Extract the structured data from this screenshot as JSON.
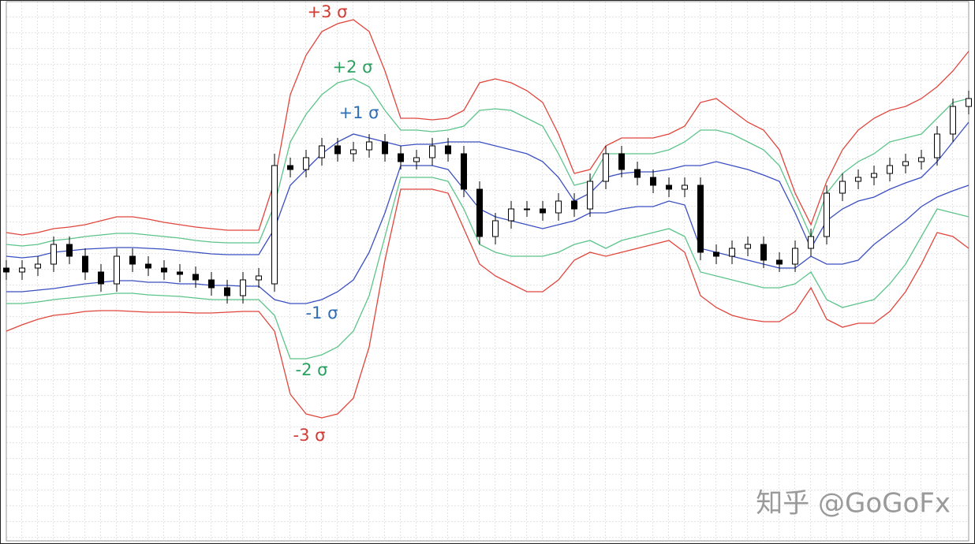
{
  "chart_data": {
    "type": "candlestick",
    "grid": true,
    "ylim": [
      0,
      690
    ],
    "up_color": "#ffffff",
    "down_color": "#000000",
    "wick_color": "#000000",
    "open": [
      350,
      345,
      350,
      355,
      380,
      365,
      345,
      330,
      365,
      355,
      350,
      345,
      342,
      335,
      325,
      315,
      335,
      330,
      480,
      475,
      490,
      505,
      495,
      500,
      510,
      495,
      485,
      490,
      505,
      495,
      450,
      390,
      410,
      425,
      425,
      420,
      435,
      425,
      460,
      495,
      475,
      465,
      455,
      450,
      455,
      370,
      365,
      375,
      380,
      360,
      355,
      375,
      390,
      445,
      460,
      465,
      470,
      480,
      485,
      490,
      520,
      555
    ],
    "high": [
      360,
      360,
      365,
      390,
      390,
      375,
      355,
      375,
      375,
      365,
      360,
      355,
      352,
      345,
      335,
      345,
      350,
      495,
      490,
      500,
      515,
      515,
      510,
      520,
      520,
      505,
      500,
      515,
      515,
      505,
      460,
      420,
      435,
      435,
      435,
      445,
      445,
      470,
      505,
      505,
      485,
      475,
      465,
      465,
      465,
      380,
      385,
      390,
      390,
      370,
      385,
      400,
      455,
      470,
      475,
      480,
      490,
      495,
      500,
      530,
      565,
      575
    ],
    "low": [
      335,
      335,
      340,
      345,
      355,
      335,
      320,
      320,
      345,
      340,
      335,
      332,
      325,
      315,
      305,
      305,
      325,
      320,
      465,
      465,
      480,
      485,
      485,
      490,
      485,
      475,
      475,
      480,
      485,
      440,
      380,
      380,
      400,
      415,
      410,
      410,
      415,
      415,
      450,
      465,
      455,
      445,
      440,
      440,
      360,
      355,
      355,
      365,
      350,
      345,
      345,
      365,
      380,
      435,
      450,
      455,
      460,
      470,
      475,
      480,
      510,
      545
    ],
    "close": [
      345,
      350,
      355,
      380,
      365,
      345,
      330,
      365,
      355,
      350,
      345,
      342,
      335,
      325,
      315,
      335,
      340,
      480,
      475,
      490,
      505,
      495,
      500,
      510,
      495,
      485,
      490,
      505,
      495,
      450,
      390,
      410,
      425,
      425,
      420,
      435,
      425,
      460,
      495,
      475,
      465,
      455,
      450,
      455,
      370,
      365,
      375,
      380,
      360,
      355,
      375,
      390,
      445,
      460,
      465,
      470,
      480,
      485,
      490,
      520,
      555,
      565
    ],
    "series": [
      {
        "name": "+3 σ",
        "color": "#e0453c",
        "values": [
          395,
          392,
          395,
          400,
          402,
          405,
          410,
          415,
          415,
          412,
          408,
          405,
          402,
          400,
          398,
          398,
          398,
          460,
          570,
          620,
          650,
          660,
          665,
          650,
          600,
          540,
          540,
          538,
          540,
          550,
          585,
          590,
          585,
          575,
          560,
          520,
          470,
          475,
          505,
          515,
          515,
          515,
          520,
          530,
          560,
          565,
          550,
          535,
          525,
          500,
          445,
          405,
          460,
          500,
          525,
          540,
          550,
          555,
          565,
          580,
          600,
          625
        ]
      },
      {
        "name": "+2 σ",
        "color": "#5cc48a",
        "values": [
          380,
          378,
          380,
          385,
          387,
          390,
          392,
          394,
          394,
          392,
          390,
          388,
          385,
          383,
          382,
          382,
          382,
          430,
          510,
          545,
          570,
          585,
          590,
          580,
          550,
          525,
          525,
          523,
          525,
          530,
          550,
          552,
          550,
          540,
          530,
          495,
          455,
          460,
          495,
          495,
          495,
          495,
          500,
          510,
          525,
          525,
          520,
          510,
          500,
          480,
          435,
          390,
          445,
          470,
          485,
          495,
          510,
          515,
          520,
          540,
          560,
          565
        ]
      },
      {
        "name": "+1 σ",
        "color": "#3a4fc0",
        "values": [
          365,
          363,
          365,
          370,
          372,
          374,
          375,
          376,
          376,
          375,
          374,
          372,
          370,
          368,
          367,
          367,
          367,
          400,
          455,
          475,
          495,
          510,
          520,
          515,
          510,
          505,
          507,
          507,
          510,
          510,
          510,
          505,
          500,
          495,
          485,
          465,
          435,
          445,
          465,
          470,
          472,
          472,
          475,
          480,
          480,
          485,
          480,
          475,
          468,
          460,
          420,
          375,
          410,
          425,
          435,
          440,
          450,
          458,
          465,
          485,
          510,
          535
        ]
      },
      {
        "name": "-1 σ",
        "color": "#3a4fc0",
        "values": [
          320,
          320,
          322,
          324,
          327,
          330,
          332,
          334,
          334,
          332,
          332,
          330,
          330,
          328,
          328,
          327,
          327,
          310,
          305,
          305,
          310,
          320,
          335,
          370,
          420,
          480,
          480,
          480,
          475,
          450,
          425,
          415,
          410,
          405,
          400,
          405,
          410,
          420,
          420,
          425,
          428,
          428,
          435,
          430,
          375,
          370,
          365,
          360,
          355,
          350,
          350,
          365,
          355,
          355,
          360,
          380,
          395,
          410,
          428,
          440,
          448,
          455
        ]
      },
      {
        "name": "-2 σ",
        "color": "#5cc48a",
        "values": [
          305,
          305,
          307,
          310,
          312,
          314,
          316,
          318,
          318,
          316,
          315,
          314,
          312,
          310,
          310,
          310,
          310,
          290,
          235,
          235,
          240,
          250,
          270,
          315,
          390,
          465,
          465,
          465,
          460,
          425,
          380,
          370,
          365,
          365,
          365,
          370,
          380,
          385,
          375,
          385,
          390,
          395,
          400,
          390,
          345,
          340,
          335,
          330,
          325,
          325,
          330,
          345,
          310,
          300,
          305,
          310,
          330,
          355,
          390,
          425,
          420,
          415
        ]
      },
      {
        "name": "-3 σ",
        "color": "#e0453c",
        "values": [
          270,
          278,
          285,
          290,
          292,
          295,
          296,
          296,
          295,
          294,
          294,
          294,
          293,
          293,
          294,
          295,
          295,
          270,
          190,
          165,
          160,
          165,
          185,
          250,
          360,
          450,
          450,
          450,
          445,
          400,
          355,
          340,
          330,
          320,
          320,
          335,
          360,
          370,
          365,
          370,
          375,
          380,
          385,
          370,
          315,
          300,
          290,
          285,
          282,
          282,
          295,
          325,
          285,
          275,
          280,
          280,
          295,
          320,
          355,
          395,
          390,
          375
        ]
      }
    ],
    "label_colors": [
      "#d23a32",
      "#2aa060",
      "#2f6db5",
      "#2f6db5",
      "#2aa060",
      "#d23a32"
    ],
    "watermark": "知乎 @GoGoFx"
  }
}
